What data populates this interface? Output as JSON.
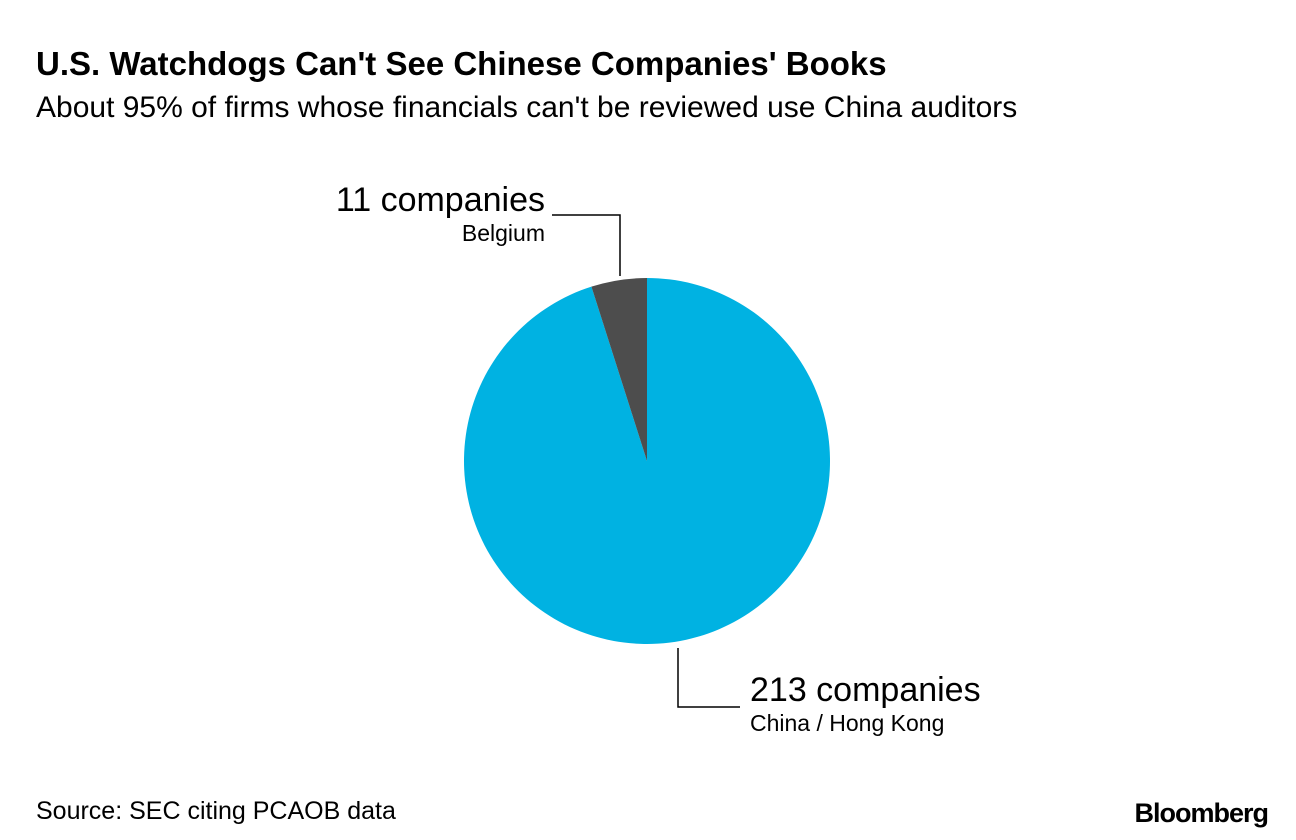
{
  "chart_data": {
    "type": "pie",
    "title": "U.S. Watchdogs Can't See Chinese Companies' Books",
    "subtitle": "About 95% of firms whose financials can't be reviewed use China auditors",
    "categories": [
      "China / Hong Kong",
      "Belgium"
    ],
    "values": [
      213,
      11
    ],
    "value_labels": [
      "213 companies",
      "11 companies"
    ],
    "colors": [
      "#00b2e2",
      "#4d4d4d"
    ],
    "source": "Source: SEC citing PCAOB data",
    "brand": "Bloomberg"
  }
}
